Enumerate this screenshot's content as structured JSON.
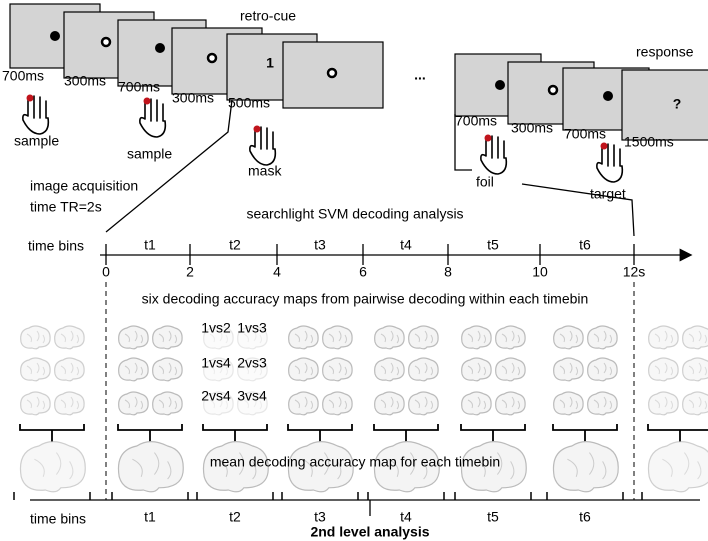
{
  "trial": {
    "retro_cue": "retro-cue",
    "cue_digit": "1",
    "ellipsis": "...",
    "response": "response",
    "response_symbol": "?",
    "durations_left": [
      "700ms",
      "300ms",
      "700ms",
      "300ms",
      "500ms"
    ],
    "durations_right": [
      "700ms",
      "300ms",
      "700ms",
      "1500ms"
    ],
    "hand_labels": [
      "sample",
      "sample",
      "mask",
      "foil",
      "target"
    ]
  },
  "acquisition": {
    "line1": "image acquisition",
    "line2": "time TR=2s"
  },
  "analysis_title": "searchlight SVM decoding analysis",
  "timeline": {
    "label": "time bins",
    "bins": [
      "t1",
      "t2",
      "t3",
      "t4",
      "t5",
      "t6"
    ],
    "ticks": [
      "0",
      "2",
      "4",
      "6",
      "8",
      "10",
      "12s"
    ]
  },
  "maps_caption": "six decoding accuracy maps from pairwise decoding within each timebin",
  "pairs": [
    "1vs2",
    "1vs3",
    "1vs4",
    "2vs3",
    "2vs4",
    "3vs4"
  ],
  "mean_caption": "mean decoding accuracy map for each timebin",
  "bottom": {
    "label": "time bins",
    "bins": [
      "t1",
      "t2",
      "t3",
      "t4",
      "t5",
      "t6"
    ],
    "title": "2nd level analysis"
  }
}
